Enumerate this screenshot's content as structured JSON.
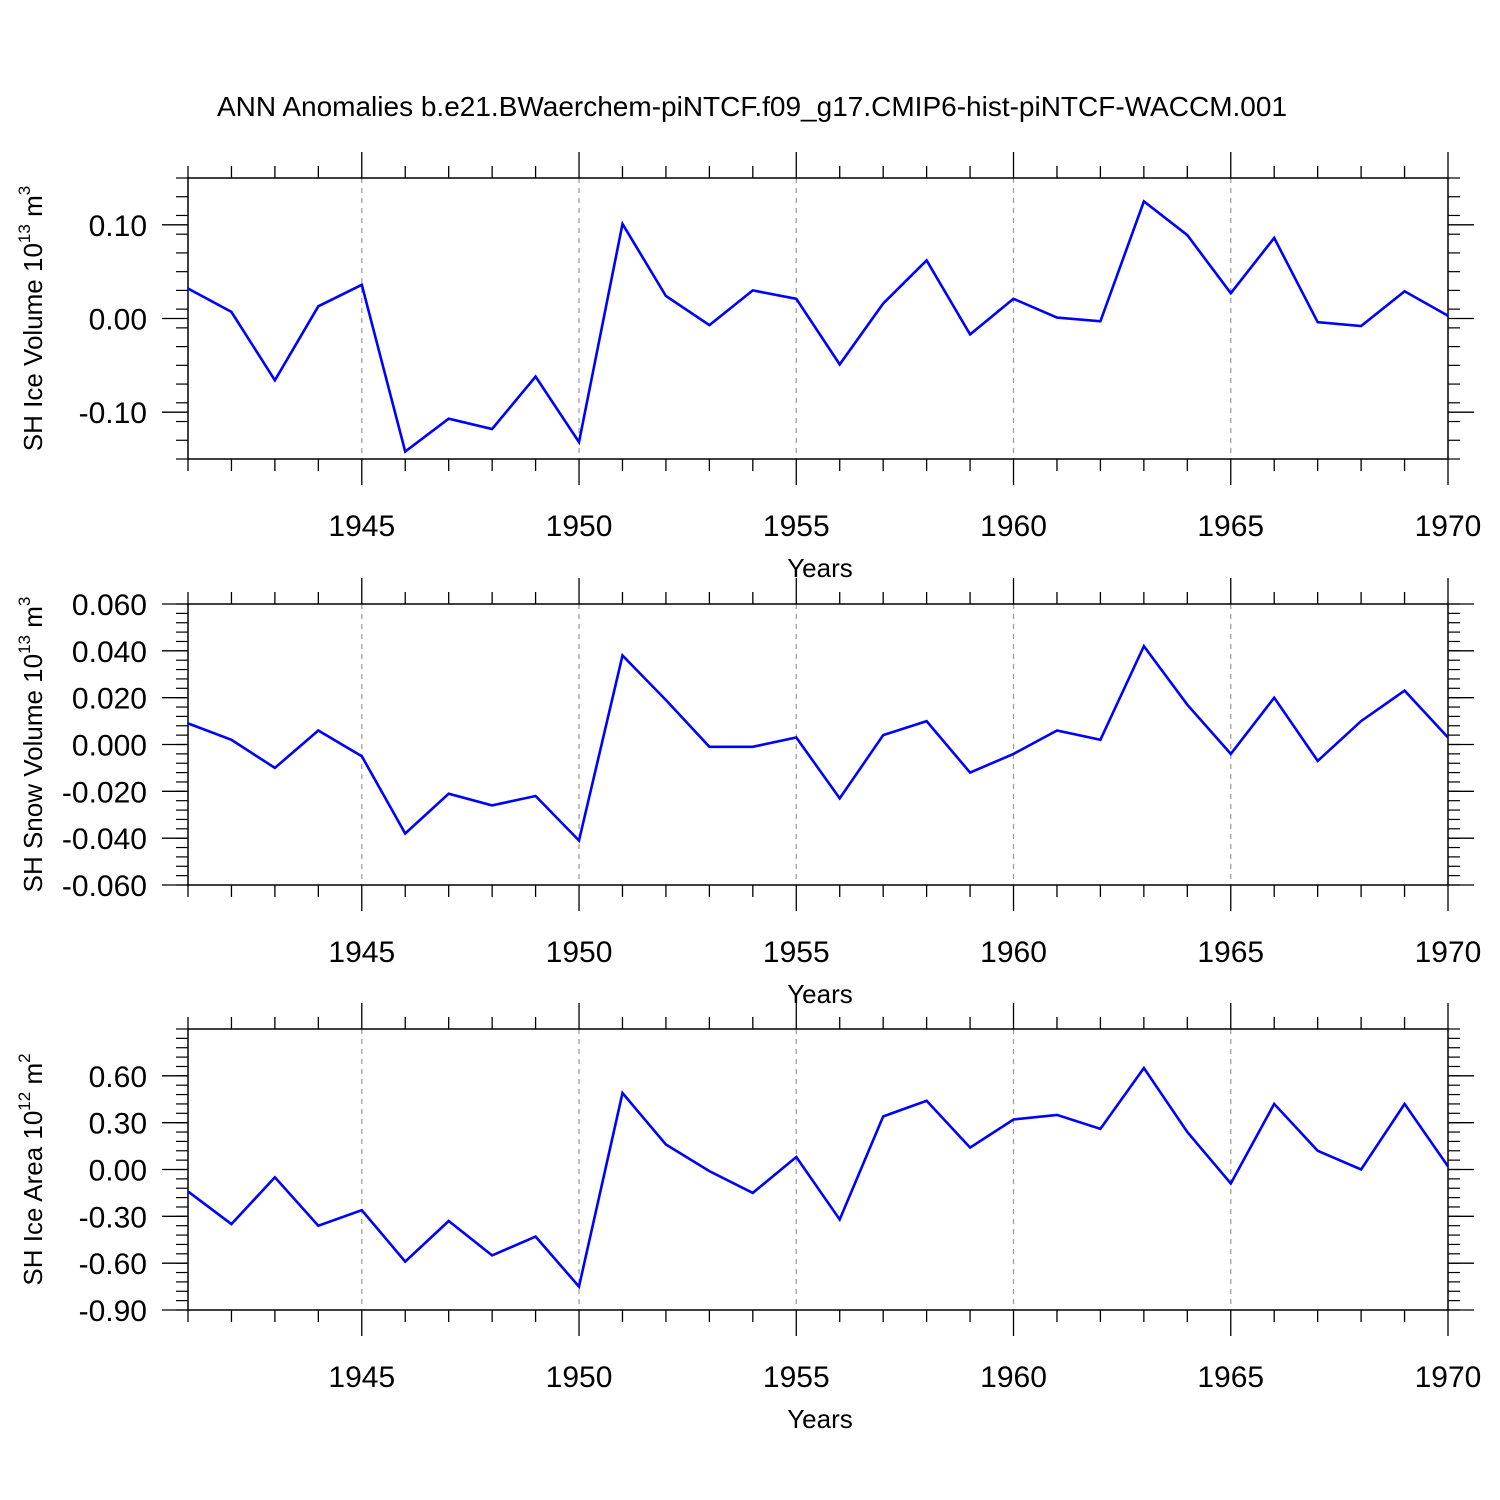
{
  "title": "ANN Anomalies b.e21.BWaerchem-piNTCF.f09_g17.CMIP6-hist-piNTCF-WACCM.001",
  "colors": {
    "series": "#0000ff",
    "axis": "#000000",
    "grid": "#999999"
  },
  "chart_data": [
    {
      "type": "line",
      "title": "",
      "xlabel": "Years",
      "ylabel_main": "SH Ice Volume 10",
      "ylabel_exp": "13",
      "ylabel_unit": " m",
      "ylabel_unit_exp": "3",
      "xlim": [
        1941,
        1970
      ],
      "ylim": [
        -0.15,
        0.15
      ],
      "xticks": [
        1945,
        1950,
        1955,
        1960,
        1965,
        1970
      ],
      "xtick_labels": [
        "1945",
        "1950",
        "1955",
        "1960",
        "1965",
        "1970"
      ],
      "yticks": [
        -0.1,
        0.0,
        0.1
      ],
      "ytick_labels": [
        "-0.10",
        "0.00",
        "0.10"
      ],
      "x": [
        1941,
        1942,
        1943,
        1944,
        1945,
        1946,
        1947,
        1948,
        1949,
        1950,
        1951,
        1952,
        1953,
        1954,
        1955,
        1956,
        1957,
        1958,
        1959,
        1960,
        1961,
        1962,
        1963,
        1964,
        1965,
        1966,
        1967,
        1968,
        1969,
        1970
      ],
      "values": [
        0.032,
        0.007,
        -0.066,
        0.013,
        0.036,
        -0.142,
        -0.107,
        -0.118,
        -0.062,
        -0.132,
        0.101,
        0.024,
        -0.007,
        0.03,
        0.021,
        -0.049,
        0.016,
        0.062,
        -0.017,
        0.021,
        0.001,
        -0.003,
        0.125,
        0.089,
        0.027,
        0.086,
        -0.004,
        -0.008,
        0.029,
        0.003
      ]
    },
    {
      "type": "line",
      "title": "",
      "xlabel": "Years",
      "ylabel_main": "SH Snow Volume 10",
      "ylabel_exp": "13",
      "ylabel_unit": " m",
      "ylabel_unit_exp": "3",
      "xlim": [
        1941,
        1970
      ],
      "ylim": [
        -0.06,
        0.06
      ],
      "xticks": [
        1945,
        1950,
        1955,
        1960,
        1965,
        1970
      ],
      "xtick_labels": [
        "1945",
        "1950",
        "1955",
        "1960",
        "1965",
        "1970"
      ],
      "yticks": [
        -0.06,
        -0.04,
        -0.02,
        0.0,
        0.02,
        0.04,
        0.06
      ],
      "ytick_labels": [
        "-0.060",
        "-0.040",
        "-0.020",
        "0.000",
        "0.020",
        "0.040",
        "0.060"
      ],
      "x": [
        1941,
        1942,
        1943,
        1944,
        1945,
        1946,
        1947,
        1948,
        1949,
        1950,
        1951,
        1952,
        1953,
        1954,
        1955,
        1956,
        1957,
        1958,
        1959,
        1960,
        1961,
        1962,
        1963,
        1964,
        1965,
        1966,
        1967,
        1968,
        1969,
        1970
      ],
      "values": [
        0.009,
        0.002,
        -0.01,
        0.006,
        -0.005,
        -0.038,
        -0.021,
        -0.026,
        -0.022,
        -0.041,
        0.038,
        0.019,
        -0.001,
        -0.001,
        0.003,
        -0.023,
        0.004,
        0.01,
        -0.012,
        -0.004,
        0.006,
        0.002,
        0.042,
        0.017,
        -0.004,
        0.02,
        -0.007,
        0.01,
        0.023,
        0.003
      ]
    },
    {
      "type": "line",
      "title": "",
      "xlabel": "Years",
      "ylabel_main": "SH Ice Area 10",
      "ylabel_exp": "12",
      "ylabel_unit": " m",
      "ylabel_unit_exp": "2",
      "xlim": [
        1941,
        1970
      ],
      "ylim": [
        -0.9,
        0.9
      ],
      "xticks": [
        1945,
        1950,
        1955,
        1960,
        1965,
        1970
      ],
      "xtick_labels": [
        "1945",
        "1950",
        "1955",
        "1960",
        "1965",
        "1970"
      ],
      "yticks": [
        -0.9,
        -0.6,
        -0.3,
        0.0,
        0.3,
        0.6
      ],
      "ytick_labels": [
        "-0.90",
        "-0.60",
        "-0.30",
        "0.00",
        "0.30",
        "0.60"
      ],
      "x": [
        1941,
        1942,
        1943,
        1944,
        1945,
        1946,
        1947,
        1948,
        1949,
        1950,
        1951,
        1952,
        1953,
        1954,
        1955,
        1956,
        1957,
        1958,
        1959,
        1960,
        1961,
        1962,
        1963,
        1964,
        1965,
        1966,
        1967,
        1968,
        1969,
        1970
      ],
      "values": [
        -0.14,
        -0.35,
        -0.05,
        -0.36,
        -0.26,
        -0.59,
        -0.33,
        -0.55,
        -0.43,
        -0.75,
        0.49,
        0.16,
        -0.01,
        -0.15,
        0.08,
        -0.32,
        0.34,
        0.44,
        0.14,
        0.32,
        0.35,
        0.26,
        0.65,
        0.24,
        -0.09,
        0.42,
        0.12,
        0.0,
        0.42,
        0.02
      ]
    }
  ]
}
